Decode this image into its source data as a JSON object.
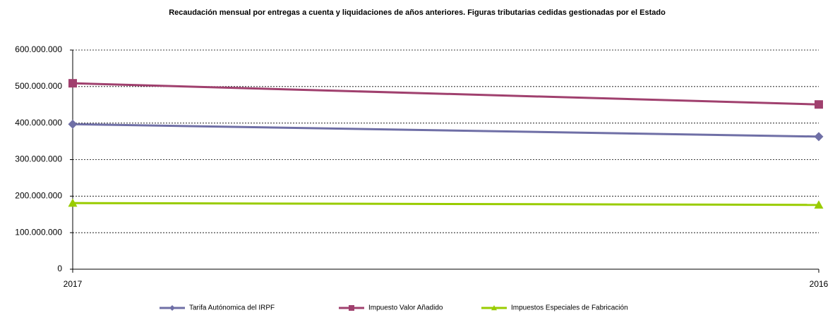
{
  "chart_data": {
    "type": "line",
    "title": "Recaudación mensual por entregas a cuenta y liquidaciones de años anteriores. Figuras tributarias cedidas gestionadas por el Estado",
    "categories": [
      "2017",
      "2016"
    ],
    "series": [
      {
        "name": "Tarifa Autónomica del IRPF",
        "color": "#6f6fa6",
        "marker": "diamond",
        "values": [
          397000000,
          363000000
        ]
      },
      {
        "name": "Impuesto Valor Añadido",
        "color": "#a0406e",
        "marker": "square",
        "values": [
          509000000,
          451000000
        ]
      },
      {
        "name": "Impuestos Especiales de Fabricación",
        "color": "#99cc00",
        "marker": "triangle",
        "values": [
          181000000,
          176000000
        ]
      }
    ],
    "ylim": [
      0,
      600000000
    ],
    "yticks": [
      0,
      {
        "value": 100000000,
        "label": "100.000.000"
      },
      {
        "value": 200000000,
        "label": "200.000.000"
      },
      {
        "value": 300000000,
        "label": "300.000.000"
      },
      {
        "value": 400000000,
        "label": "400.000.000"
      },
      {
        "value": 500000000,
        "label": "500.000.000"
      },
      {
        "value": 600000000,
        "label": "600.000.000"
      }
    ],
    "grid": true,
    "legend": "bottom"
  }
}
